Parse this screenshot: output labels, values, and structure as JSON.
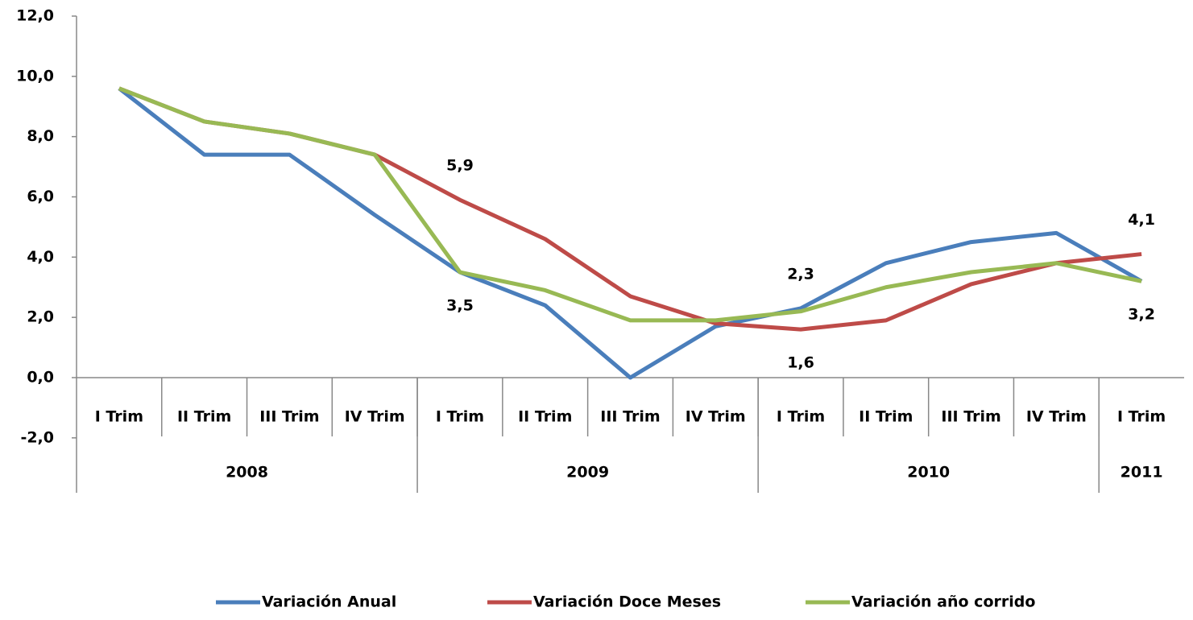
{
  "chart_data": {
    "type": "line",
    "categories": [
      "I Trim",
      "II Trim",
      "III Trim",
      "IV Trim",
      "I Trim",
      "II Trim",
      "III Trim",
      "IV Trim",
      "I Trim",
      "II Trim",
      "III Trim",
      "IV Trim",
      "I Trim"
    ],
    "groups": [
      {
        "label": "2008",
        "count": 4
      },
      {
        "label": "2009",
        "count": 4
      },
      {
        "label": "2010",
        "count": 4
      },
      {
        "label": "2011",
        "count": 1
      }
    ],
    "series": [
      {
        "name": "Variación Anual",
        "color": "#4a7ebb",
        "values": [
          9.6,
          7.4,
          7.4,
          5.4,
          3.5,
          2.4,
          0.0,
          1.7,
          2.3,
          3.8,
          4.5,
          4.8,
          3.2
        ],
        "value_labels": [
          null,
          null,
          null,
          null,
          "3,5",
          null,
          null,
          null,
          "2,3",
          null,
          null,
          null,
          "3,2"
        ]
      },
      {
        "name": "Variación Doce Meses",
        "color": "#be4b48",
        "values": [
          9.6,
          8.5,
          8.1,
          7.4,
          5.9,
          4.6,
          2.7,
          1.8,
          1.6,
          1.9,
          3.1,
          3.8,
          4.1
        ],
        "value_labels": [
          null,
          null,
          null,
          null,
          "5,9",
          null,
          null,
          null,
          "1,6",
          null,
          null,
          null,
          "4,1"
        ]
      },
      {
        "name": "Variación año corrido",
        "color": "#98b954",
        "values": [
          9.6,
          8.5,
          8.1,
          7.4,
          3.5,
          2.9,
          1.9,
          1.9,
          2.2,
          3.0,
          3.5,
          3.8,
          3.2
        ]
      }
    ],
    "ylim": [
      -2,
      12
    ],
    "yticks": [
      {
        "value": -2,
        "label": "-2,0"
      },
      {
        "value": 0,
        "label": "0,0"
      },
      {
        "value": 2,
        "label": "2,0"
      },
      {
        "value": 4,
        "label": "4,0"
      },
      {
        "value": 6,
        "label": "6,0"
      },
      {
        "value": 8,
        "label": "8,0"
      },
      {
        "value": 10,
        "label": "10,0"
      },
      {
        "value": 12,
        "label": "12,0"
      }
    ],
    "grid": false,
    "legend": "bottom"
  }
}
